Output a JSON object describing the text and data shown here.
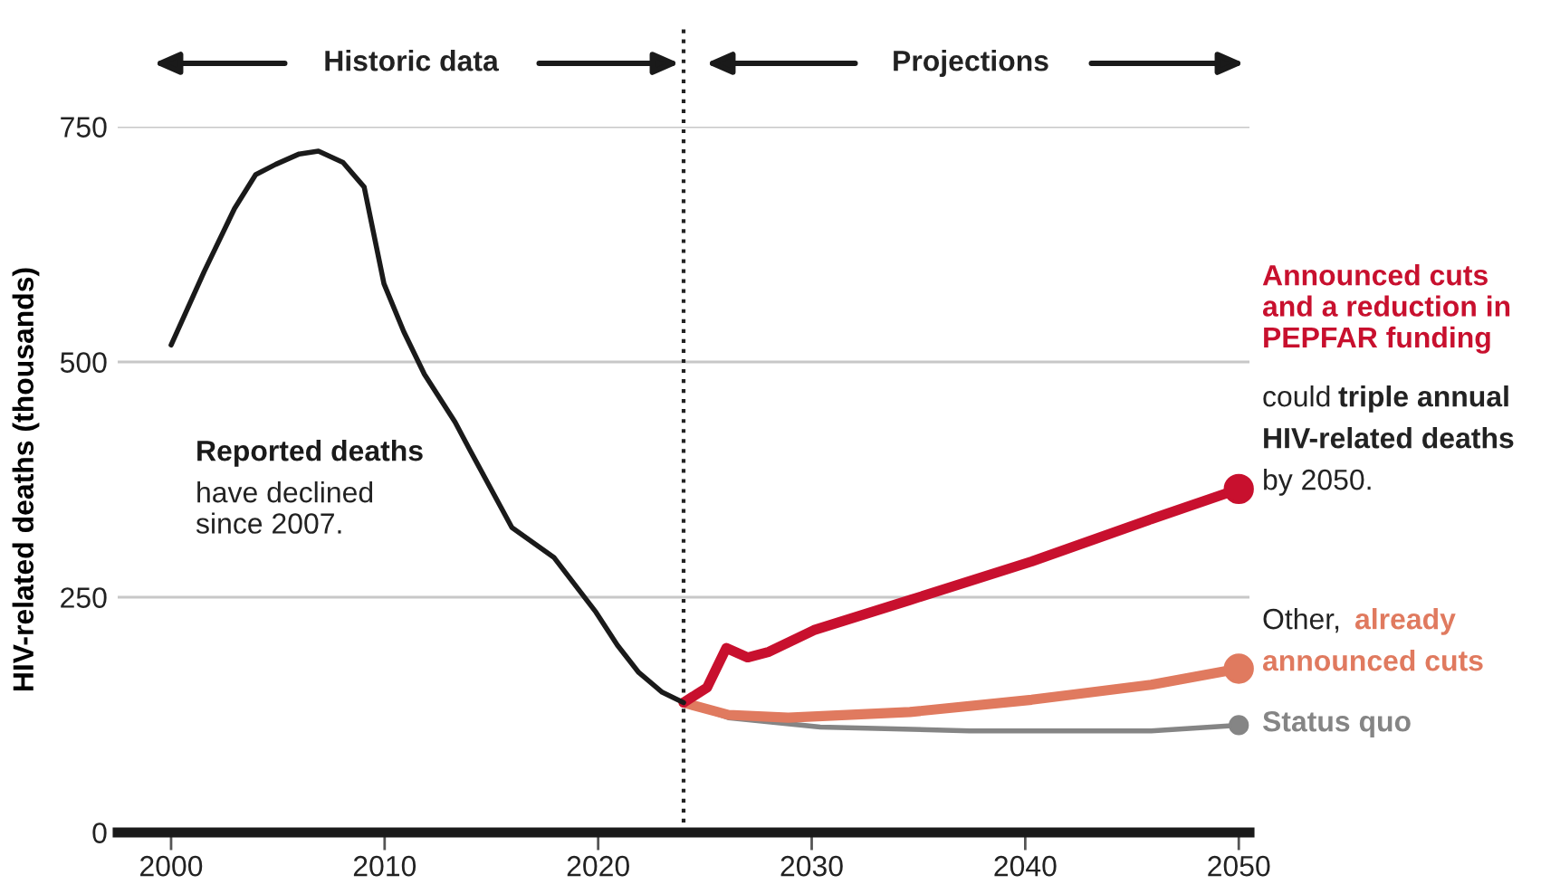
{
  "chart_data": {
    "type": "line",
    "ylabel": "HIV-related deaths (thousands)",
    "xlim": [
      1997.5,
      2050.5
    ],
    "ylim": [
      0,
      750
    ],
    "xticks": [
      2000,
      2010,
      2020,
      2030,
      2040,
      2050
    ],
    "yticks": [
      0,
      250,
      500,
      750
    ],
    "grid": "y",
    "ref_lines": [
      {
        "axis": "x",
        "value": 2024,
        "label": null,
        "color": "#222222",
        "line_style": "dotted"
      }
    ],
    "annotations": [
      "Historic data",
      "Projections",
      "have declined\nsince 2007.",
      "could",
      "triple annual",
      "HIV-related deaths",
      "by 2050.",
      "Other,"
    ],
    "series": [
      {
        "name": "Reported deaths",
        "color": "#1a1a1a",
        "x": [
          2000,
          2001.55,
          2002.97,
          2003.96,
          2004.9,
          2006.0,
          2006.9,
          2008.05,
          2009.04,
          2009.97,
          2010.9,
          2011.86,
          2013.3,
          2013.98,
          2015.96,
          2017.94,
          2019.9,
          2020.9,
          2021.9,
          2023.0,
          2024.0
        ],
        "values": [
          518,
          596,
          663,
          699,
          710,
          721,
          724,
          712,
          686,
          583,
          532,
          487,
          436,
          407,
          324,
          292,
          234,
          199,
          170,
          149,
          138
        ]
      },
      {
        "name": "Announced cuts\nand a reduction in\nPEPFAR funding",
        "color": "#c8102e",
        "x": [
          2024.0,
          2025.1,
          2026.0,
          2027.0,
          2028.0,
          2030.1,
          2034.6,
          2040.3,
          2045.9,
          2050
        ],
        "values": [
          138,
          154,
          196,
          186,
          192,
          215,
          247,
          288,
          333,
          365
        ]
      },
      {
        "name": "already\nannounced cuts",
        "color": "#e07a5f",
        "x": [
          2024.0,
          2026.1,
          2028.9,
          2034.6,
          2040.3,
          2045.9,
          2050
        ],
        "values": [
          138,
          125,
          122,
          128,
          141,
          157,
          174
        ]
      },
      {
        "name": "Status quo",
        "color": "#858585",
        "x": [
          2024.0,
          2026.1,
          2030.4,
          2037.4,
          2045.9,
          2050
        ],
        "values": [
          138,
          122,
          112,
          108,
          108,
          114
        ]
      }
    ]
  }
}
